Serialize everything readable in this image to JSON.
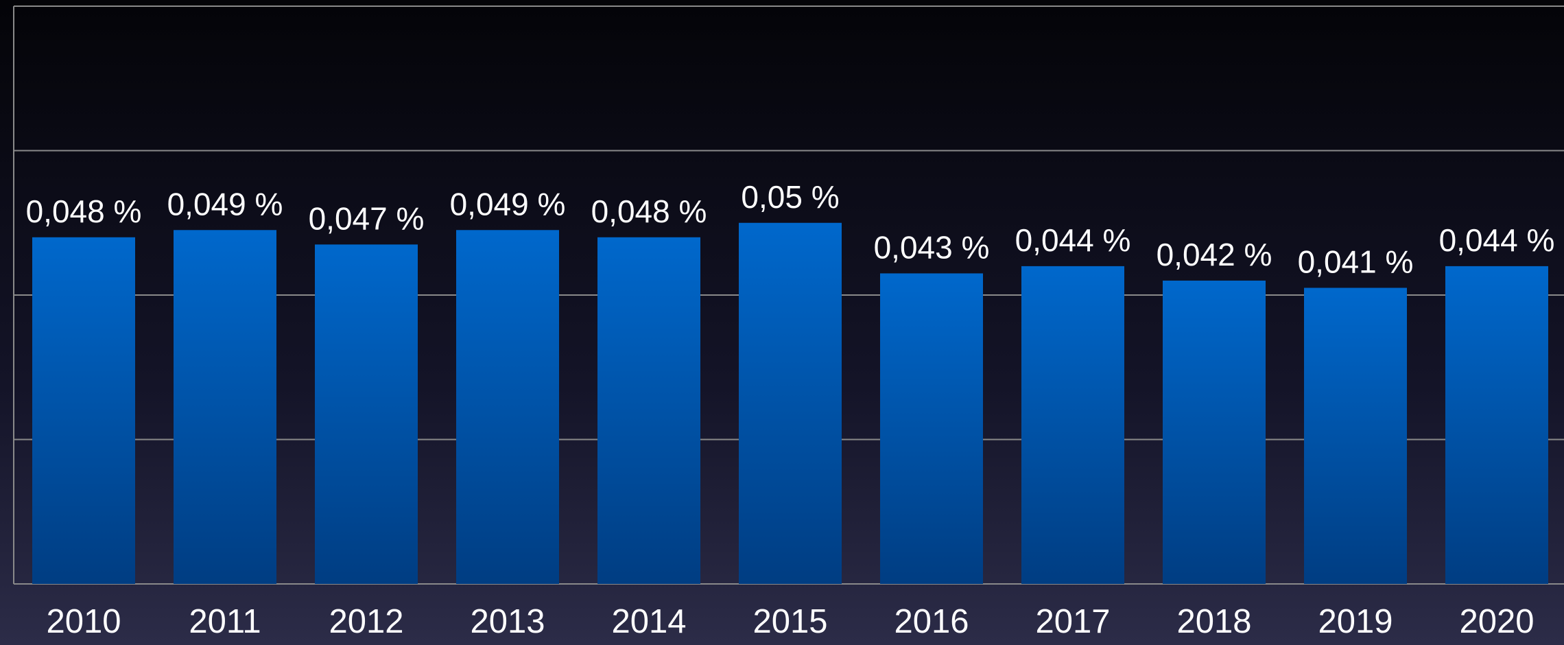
{
  "chart_data": {
    "type": "bar",
    "categories": [
      "2010",
      "2011",
      "2012",
      "2013",
      "2014",
      "2015",
      "2016",
      "2017",
      "2018",
      "2019",
      "2020"
    ],
    "values": [
      0.048,
      0.049,
      0.047,
      0.049,
      0.048,
      0.05,
      0.043,
      0.044,
      0.042,
      0.041,
      0.044
    ],
    "value_labels": [
      "0,048 %",
      "0,049 %",
      "0,047 %",
      "0,049 %",
      "0,048 %",
      "0,05 %",
      "0,043 %",
      "0,044 %",
      "0,042 %",
      "0,041 %",
      "0,044 %"
    ],
    "color": "#0066c8",
    "ylim": [
      0,
      0.08
    ],
    "yticks": [
      0,
      0.02,
      0.04,
      0.06,
      0.08
    ],
    "grid": true
  }
}
